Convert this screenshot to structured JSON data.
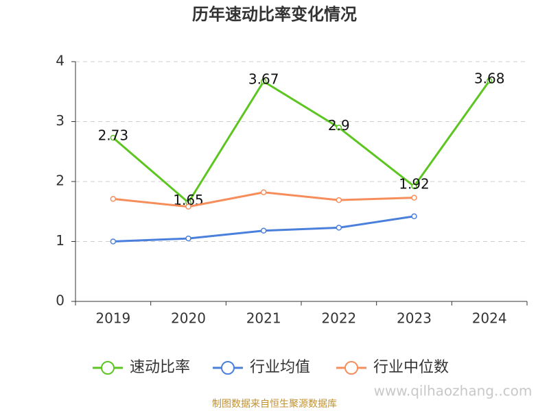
{
  "chart_data": {
    "type": "line",
    "title": "历年速动比率变化情况",
    "categories": [
      "2019",
      "2020",
      "2021",
      "2022",
      "2023",
      "2024"
    ],
    "series": [
      {
        "name": "速动比率",
        "color": "#5cc520",
        "values": [
          2.73,
          1.65,
          3.67,
          2.9,
          1.92,
          3.68
        ],
        "show_labels": true
      },
      {
        "name": "行业均值",
        "color": "#4a7fdc",
        "values": [
          1.0,
          1.05,
          1.18,
          1.23,
          1.42,
          null
        ]
      },
      {
        "name": "行业中位数",
        "color": "#f78d5a",
        "values": [
          1.71,
          1.58,
          1.82,
          1.69,
          1.73,
          null
        ]
      }
    ],
    "ylim": [
      0,
      4
    ],
    "yticks": [
      0,
      1,
      2,
      3,
      4
    ],
    "grid": true,
    "watermark": "www.qilhaozhang..com",
    "source": "制图数据来自恒生聚源数据库"
  }
}
